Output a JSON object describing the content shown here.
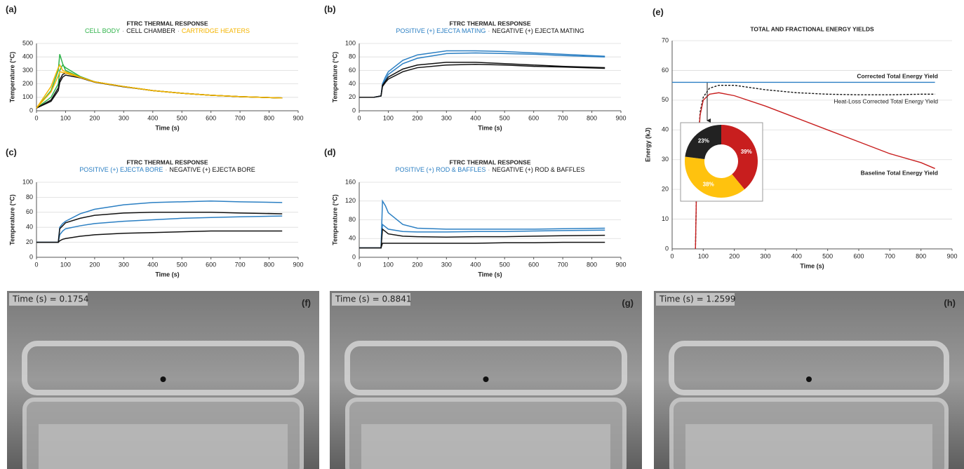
{
  "chart_data": [
    {
      "type": "line",
      "panel_label": "(a)",
      "title": "FTRC THERMAL RESPONSE",
      "separator": "·",
      "xlabel": "Time (s)",
      "ylabel": "Temperature (°C)",
      "x": [
        0,
        50,
        75,
        80,
        90,
        100,
        150,
        200,
        300,
        400,
        500,
        600,
        700,
        845
      ],
      "series": [
        {
          "name": "CELL BODY",
          "color": "#2fb34a",
          "curves": [
            [
              20,
              150,
              300,
              420,
              350,
              300,
              250,
              215,
              180,
              150,
              130,
              115,
              105,
              95
            ],
            [
              20,
              100,
              200,
              300,
              340,
              320,
              255,
              215,
              180,
              150,
              130,
              115,
              105,
              95
            ]
          ]
        },
        {
          "name": "CELL CHAMBER",
          "color": "#111111",
          "curves": [
            [
              20,
              80,
              170,
              230,
              270,
              280,
              250,
              215,
              180,
              150,
              130,
              115,
              105,
              95
            ],
            [
              20,
              70,
              150,
              210,
              250,
              265,
              245,
              212,
              178,
              150,
              130,
              115,
              105,
              95
            ]
          ]
        },
        {
          "name": "CARTRIDGE HEATERS",
          "color": "#f4b400",
          "curves": [
            [
              20,
              180,
              320,
              340,
              300,
              290,
              250,
              215,
              180,
              150,
              130,
              115,
              105,
              95
            ],
            [
              20,
              140,
              260,
              290,
              285,
              280,
              248,
              214,
              180,
              150,
              130,
              115,
              105,
              95
            ]
          ]
        }
      ],
      "xlim": [
        0,
        900
      ],
      "xticks": [
        0,
        100,
        200,
        300,
        400,
        500,
        600,
        700,
        800,
        900
      ],
      "ylim": [
        0,
        500
      ],
      "yticks": [
        0,
        100,
        200,
        300,
        400,
        500
      ],
      "grid": true
    },
    {
      "type": "line",
      "panel_label": "(b)",
      "title": "FTRC THERMAL RESPONSE",
      "separator": "·",
      "xlabel": "Time (s)",
      "ylabel": "Temperature (°C)",
      "x": [
        0,
        50,
        75,
        80,
        90,
        100,
        150,
        200,
        300,
        400,
        500,
        600,
        700,
        845
      ],
      "series": [
        {
          "name": "POSITIVE (+) EJECTA MATING",
          "color": "#2b7fc3",
          "curves": [
            [
              20,
              20,
              22,
              40,
              50,
              58,
              75,
              83,
              89,
              89,
              88,
              86,
              84,
              81
            ],
            [
              20,
              20,
              22,
              38,
              46,
              54,
              70,
              78,
              85,
              86,
              85,
              84,
              82,
              80
            ]
          ]
        },
        {
          "name": "NEGATIVE (+) EJECTA MATING",
          "color": "#111111",
          "curves": [
            [
              20,
              20,
              22,
              38,
              44,
              50,
              62,
              68,
              72,
              72,
              70,
              68,
              66,
              64
            ],
            [
              20,
              20,
              22,
              36,
              42,
              47,
              58,
              64,
              68,
              69,
              68,
              66,
              65,
              63
            ]
          ]
        }
      ],
      "xlim": [
        0,
        900
      ],
      "xticks": [
        0,
        100,
        200,
        300,
        400,
        500,
        600,
        700,
        800,
        900
      ],
      "ylim": [
        0,
        100
      ],
      "yticks": [
        0,
        20,
        40,
        60,
        80,
        100
      ],
      "grid": true
    },
    {
      "type": "line",
      "panel_label": "(c)",
      "title": "FTRC THERMAL RESPONSE",
      "separator": "·",
      "xlabel": "Time (s)",
      "ylabel": "Temperature (°C)",
      "x": [
        0,
        50,
        75,
        80,
        90,
        100,
        150,
        200,
        300,
        400,
        500,
        600,
        700,
        845
      ],
      "series": [
        {
          "name": "POSITIVE (+) EJECTA BORE",
          "color": "#2b7fc3",
          "curves": [
            [
              20,
              20,
              20,
              40,
              45,
              48,
              58,
              64,
              70,
              73,
              74,
              75,
              74,
              73
            ],
            [
              20,
              20,
              20,
              30,
              35,
              38,
              42,
              45,
              48,
              50,
              52,
              53,
              54,
              55
            ]
          ]
        },
        {
          "name": "NEGATIVE (+) EJECTA BORE",
          "color": "#111111",
          "curves": [
            [
              20,
              20,
              20,
              38,
              42,
              46,
              52,
              56,
              59,
              60,
              60,
              60,
              59,
              58
            ],
            [
              20,
              20,
              20,
              22,
              24,
              25,
              28,
              30,
              32,
              33,
              34,
              35,
              35,
              35
            ]
          ]
        }
      ],
      "xlim": [
        0,
        900
      ],
      "xticks": [
        0,
        100,
        200,
        300,
        400,
        500,
        600,
        700,
        800,
        900
      ],
      "ylim": [
        0,
        100
      ],
      "yticks": [
        0,
        20,
        40,
        60,
        80,
        100
      ],
      "grid": true
    },
    {
      "type": "line",
      "panel_label": "(d)",
      "title": "FTRC THERMAL RESPONSE",
      "separator": "·",
      "xlabel": "Time (s)",
      "ylabel": "Temperature (°C)",
      "x": [
        0,
        50,
        75,
        80,
        90,
        100,
        150,
        200,
        300,
        400,
        500,
        600,
        700,
        845
      ],
      "series": [
        {
          "name": "POSITIVE (+) ROD & BAFFLES",
          "color": "#2b7fc3",
          "curves": [
            [
              20,
              20,
              20,
              120,
              110,
              95,
              70,
              62,
              60,
              60,
              60,
              60,
              61,
              62
            ],
            [
              20,
              20,
              20,
              70,
              65,
              60,
              55,
              54,
              54,
              55,
              55,
              56,
              57,
              58
            ]
          ]
        },
        {
          "name": "NEGATIVE (+) ROD & BAFFLES",
          "color": "#111111",
          "curves": [
            [
              20,
              20,
              20,
              60,
              55,
              50,
              45,
              44,
              43,
              44,
              44,
              45,
              46,
              47
            ],
            [
              20,
              20,
              20,
              30,
              30,
              30,
              30,
              30,
              30,
              30,
              31,
              31,
              32,
              32
            ]
          ]
        }
      ],
      "xlim": [
        0,
        900
      ],
      "xticks": [
        0,
        100,
        200,
        300,
        400,
        500,
        600,
        700,
        800,
        900
      ],
      "ylim": [
        0,
        160
      ],
      "yticks": [
        0,
        40,
        80,
        120,
        160
      ],
      "grid": true
    },
    {
      "type": "energy",
      "panel_label": "(e)",
      "title": "TOTAL AND FRACTIONAL ENERGY YIELDS",
      "xlabel": "Time (s)",
      "ylabel": "Energy (kJ)",
      "series": [
        {
          "name": "Corrected Total Energy Yield",
          "color": "#2b7fc3",
          "style": "solid",
          "x": [
            0,
            845
          ],
          "values": [
            56,
            56
          ]
        },
        {
          "name": "Heat-Loss Corrected Total Energy Yield",
          "color": "#111111",
          "style": "dashed",
          "x": [
            75,
            80,
            90,
            100,
            120,
            150,
            200,
            300,
            400,
            500,
            600,
            700,
            800,
            845
          ],
          "values": [
            0,
            30,
            46,
            51,
            54,
            55,
            55,
            53.5,
            52.5,
            52,
            51.8,
            51.8,
            52,
            52
          ]
        },
        {
          "name": "Baseline Total Energy Yield",
          "color": "#c81e1e",
          "style": "solid",
          "x": [
            75,
            80,
            90,
            100,
            120,
            150,
            200,
            300,
            400,
            500,
            600,
            700,
            800,
            845
          ],
          "values": [
            0,
            30,
            45,
            50,
            52,
            52.5,
            51.5,
            48,
            44,
            40,
            36,
            32,
            29,
            27
          ]
        }
      ],
      "xlim": [
        0,
        900
      ],
      "xticks": [
        0,
        100,
        200,
        300,
        400,
        500,
        600,
        700,
        800,
        900
      ],
      "ylim": [
        0,
        70
      ],
      "yticks": [
        0,
        10,
        20,
        30,
        40,
        50,
        60,
        70
      ],
      "grid": true
    },
    {
      "type": "pie",
      "values": [
        39,
        38,
        23
      ],
      "value_labels": [
        "39%",
        "38%",
        "23%"
      ],
      "colors": [
        "#c81e1e",
        "#ffc20e",
        "#222222"
      ]
    }
  ],
  "images": [
    {
      "panel_label": "(f)",
      "caption": "Time (s) = 0.1754"
    },
    {
      "panel_label": "(g)",
      "caption": "Time (s) = 0.8841"
    },
    {
      "panel_label": "(h)",
      "caption": "Time (s) = 1.2599"
    }
  ]
}
